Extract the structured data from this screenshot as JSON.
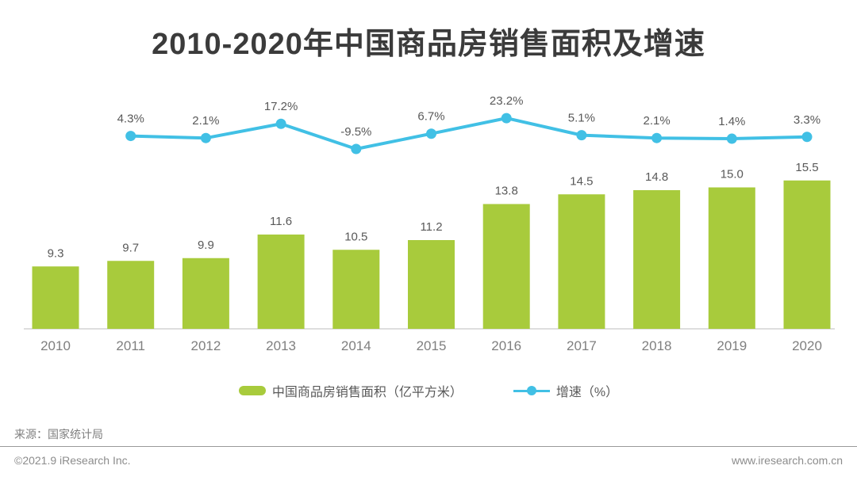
{
  "title": "2010-2020年中国商品房销售面积及增速",
  "chart_data": {
    "type": "bar+line combo",
    "title": "2010-2020年中国商品房销售面积及增速",
    "categories": [
      "2010",
      "2011",
      "2012",
      "2013",
      "2014",
      "2015",
      "2016",
      "2017",
      "2018",
      "2019",
      "2020"
    ],
    "series": [
      {
        "name": "中国商品房销售面积（亿平方米）",
        "type": "bar",
        "values": [
          9.3,
          9.7,
          9.9,
          11.6,
          10.5,
          11.2,
          13.8,
          14.5,
          14.8,
          15.0,
          15.5
        ],
        "labels": [
          "9.3",
          "9.7",
          "9.9",
          "11.6",
          "10.5",
          "11.2",
          "13.8",
          "14.5",
          "14.8",
          "15.0",
          "15.5"
        ],
        "color": "#a8cb3c"
      },
      {
        "name": "增速（%）",
        "type": "line",
        "start_category_index": 1,
        "values": [
          4.3,
          2.1,
          17.2,
          -9.5,
          6.7,
          23.2,
          5.1,
          2.1,
          1.4,
          3.3
        ],
        "labels": [
          "4.3%",
          "2.1%",
          "17.2%",
          "-9.5%",
          "6.7%",
          "23.2%",
          "5.1%",
          "2.1%",
          "1.4%",
          "3.3%"
        ],
        "color": "#41c0e5"
      }
    ],
    "bar_axis": {
      "min": 4.8,
      "visible": false
    },
    "line_axis": {
      "visible": false
    },
    "grid": "off",
    "legend_position": "bottom",
    "value_labels": "on",
    "xlabel": "",
    "ylabel": ""
  },
  "legend": {
    "bar_label": "中国商品房销售面积（亿平方米）",
    "line_label": "增速（%）"
  },
  "source_note": "来源：国家统计局",
  "footer": {
    "copyright": "©2021.9 iResearch Inc.",
    "website": "www.iresearch.com.cn"
  },
  "colors": {
    "bar": "#a8cb3c",
    "line": "#41c0e5",
    "title_text": "#3b3b3b",
    "value_label_text": "#595959",
    "axis_label_text": "#7f7f7f",
    "axis_line": "#d4d4d4"
  }
}
